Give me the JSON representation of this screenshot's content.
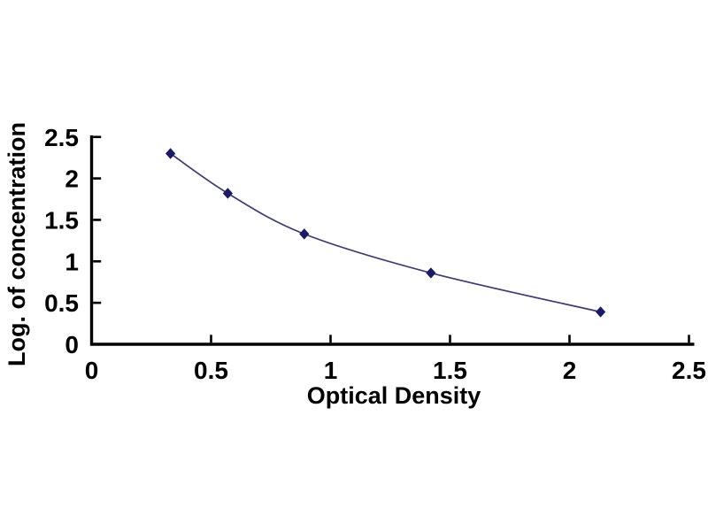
{
  "chart_data": {
    "type": "scatter",
    "line_style": "smooth",
    "title": "",
    "xlabel": "Optical Density",
    "ylabel": "Log. of concentration",
    "x": [
      0.33,
      0.57,
      0.89,
      1.42,
      2.13
    ],
    "y": [
      2.3,
      1.82,
      1.33,
      0.86,
      0.39
    ],
    "points": [
      {
        "optical_density": 0.33,
        "log_concentration": 2.3
      },
      {
        "optical_density": 0.57,
        "log_concentration": 1.82
      },
      {
        "optical_density": 0.89,
        "log_concentration": 1.33
      },
      {
        "optical_density": 1.42,
        "log_concentration": 0.86
      },
      {
        "optical_density": 2.13,
        "log_concentration": 0.39
      }
    ],
    "xlim": [
      0,
      2.5
    ],
    "ylim": [
      0,
      2.5
    ],
    "x_ticks": [
      {
        "value": 0,
        "label": "0"
      },
      {
        "value": 0.5,
        "label": "0.5"
      },
      {
        "value": 1,
        "label": "1"
      },
      {
        "value": 1.5,
        "label": "1.5"
      },
      {
        "value": 2,
        "label": "2"
      },
      {
        "value": 2.5,
        "label": "2.5"
      }
    ],
    "y_ticks": [
      {
        "value": 0,
        "label": "0"
      },
      {
        "value": 0.5,
        "label": "0.5"
      },
      {
        "value": 1,
        "label": "1"
      },
      {
        "value": 1.5,
        "label": "1.5"
      },
      {
        "value": 2,
        "label": "2"
      },
      {
        "value": 2.5,
        "label": "2.5"
      }
    ],
    "grid": false,
    "legend": null,
    "marker": "diamond",
    "colors": {
      "marker": "#1a1a66",
      "line": "#3d3d70",
      "axis": "#000000",
      "text": "#000000",
      "background": "#ffffff"
    }
  }
}
